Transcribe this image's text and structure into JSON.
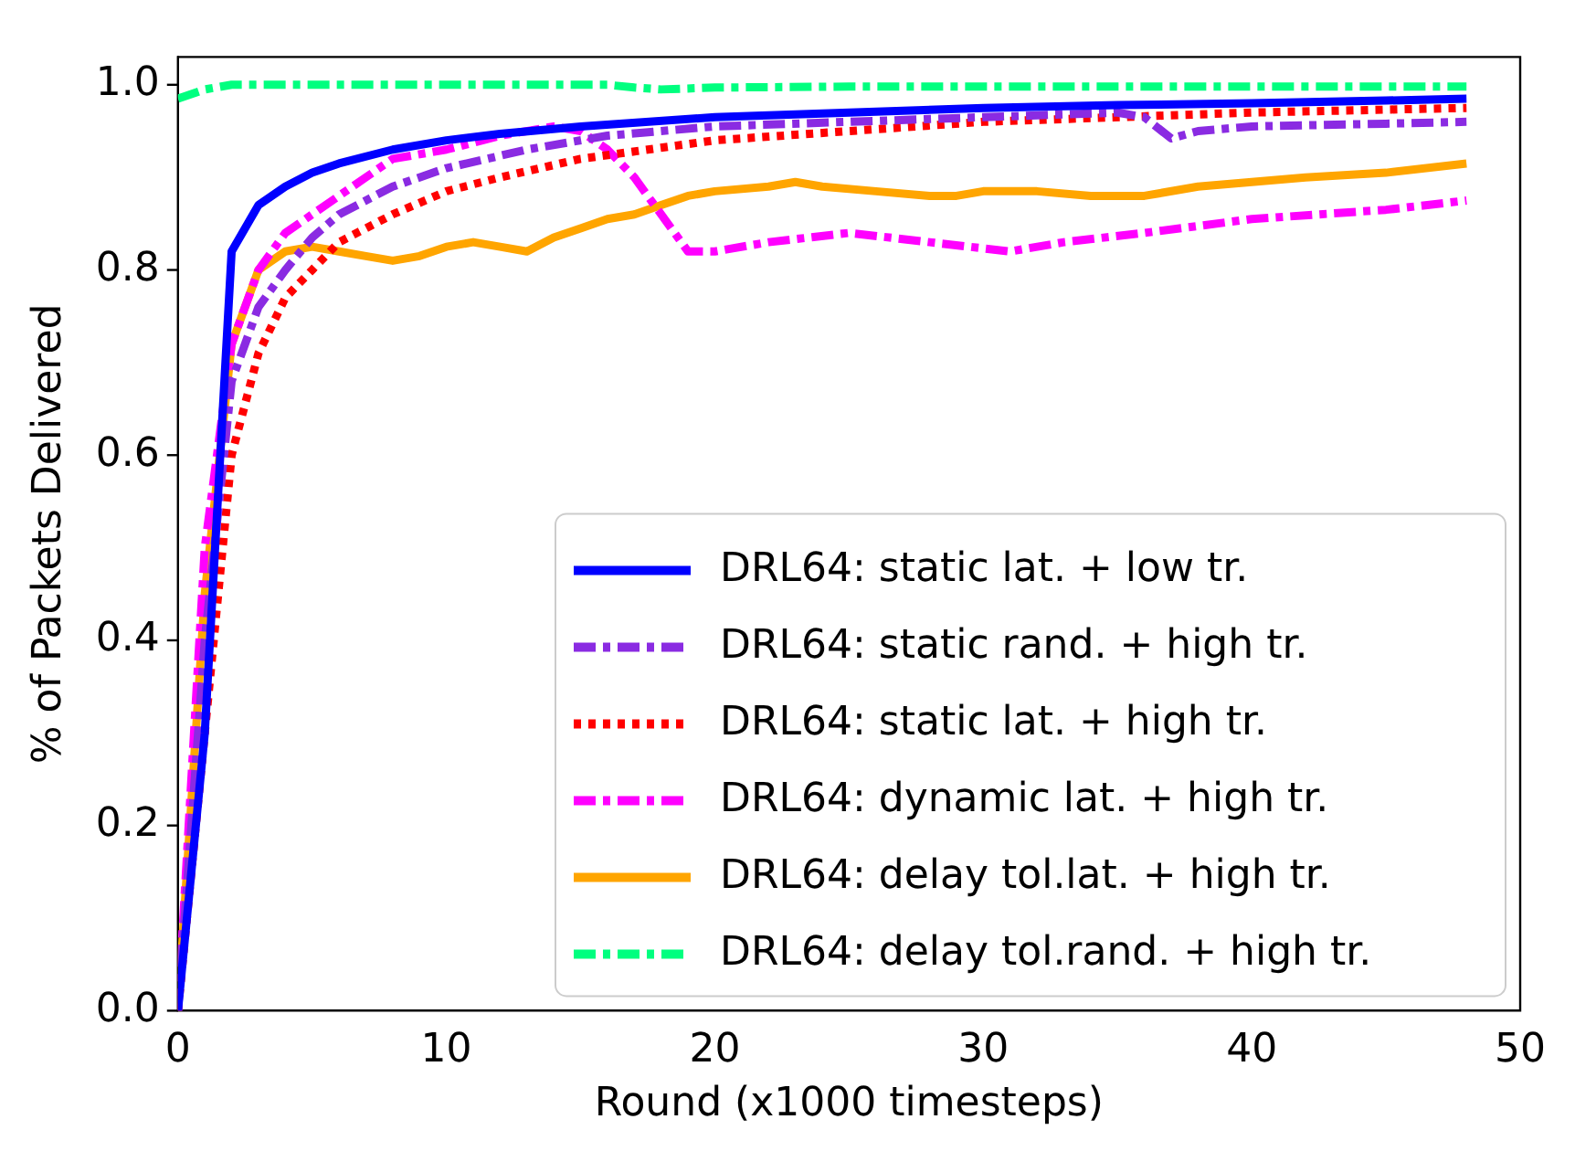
{
  "chart_data": {
    "type": "line",
    "xlabel": "Round (x1000 timesteps)",
    "ylabel": "% of Packets Delivered",
    "xlim": [
      0,
      50
    ],
    "ylim": [
      0,
      1.03
    ],
    "xticks": [
      0,
      10,
      20,
      30,
      40,
      50
    ],
    "yticks": [
      {
        "value": 0,
        "label": "0.0"
      },
      {
        "value": 0.2,
        "label": "0.2"
      },
      {
        "value": 0.4,
        "label": "0.4"
      },
      {
        "value": 0.6,
        "label": "0.6"
      },
      {
        "value": 0.8,
        "label": "0.8"
      },
      {
        "value": 1,
        "label": "1.0"
      }
    ],
    "grid": false,
    "legend": "bottom right",
    "marker": "none",
    "series": [
      {
        "name": "DRL64: static lat. + low tr.",
        "color": "#0000ff",
        "line_style": "solid",
        "x": [
          0,
          1,
          2,
          3,
          4,
          5,
          6,
          8,
          10,
          12,
          15,
          20,
          25,
          30,
          35,
          40,
          45,
          48
        ],
        "values": [
          0,
          0.3,
          0.82,
          0.87,
          0.89,
          0.905,
          0.915,
          0.93,
          0.94,
          0.947,
          0.955,
          0.965,
          0.97,
          0.975,
          0.978,
          0.98,
          0.983,
          0.985
        ]
      },
      {
        "name": "DRL64: static rand. + high tr.",
        "color": "#8a2be2",
        "line_style": "dashdot",
        "x": [
          0,
          1,
          2,
          3,
          4,
          5,
          6,
          8,
          10,
          13,
          16,
          20,
          25,
          30,
          35,
          36,
          37,
          38,
          40,
          45,
          48
        ],
        "values": [
          0,
          0.4,
          0.68,
          0.76,
          0.8,
          0.835,
          0.86,
          0.89,
          0.91,
          0.93,
          0.945,
          0.955,
          0.96,
          0.965,
          0.97,
          0.965,
          0.942,
          0.95,
          0.955,
          0.958,
          0.96
        ]
      },
      {
        "name": "DRL64: static lat. + high tr.",
        "color": "#ff0000",
        "line_style": "dotted",
        "x": [
          0,
          1,
          2,
          3,
          4,
          5,
          6,
          8,
          10,
          12,
          15,
          20,
          25,
          30,
          40,
          48
        ],
        "values": [
          0,
          0.3,
          0.6,
          0.71,
          0.77,
          0.8,
          0.83,
          0.86,
          0.885,
          0.9,
          0.92,
          0.94,
          0.95,
          0.96,
          0.97,
          0.975
        ]
      },
      {
        "name": "DRL64: dynamic lat. + high tr.",
        "color": "#ff00ff",
        "line_style": "dashdot",
        "x": [
          0,
          1,
          2,
          3,
          4,
          5,
          6,
          7,
          8,
          10,
          12,
          14,
          15,
          16,
          17,
          18,
          19,
          20,
          22,
          25,
          28,
          31,
          33,
          36,
          40,
          45,
          48
        ],
        "values": [
          0,
          0.5,
          0.72,
          0.8,
          0.84,
          0.86,
          0.88,
          0.9,
          0.92,
          0.93,
          0.945,
          0.955,
          0.95,
          0.93,
          0.9,
          0.86,
          0.82,
          0.82,
          0.83,
          0.84,
          0.83,
          0.82,
          0.83,
          0.84,
          0.855,
          0.865,
          0.875
        ]
      },
      {
        "name": "DRL64: delay tol.lat. + high tr.",
        "color": "#ffa500",
        "line_style": "solid",
        "x": [
          0,
          1,
          2,
          3,
          4,
          5,
          6,
          7,
          8,
          9,
          10,
          11,
          12,
          13,
          14,
          15,
          16,
          17,
          18,
          19,
          20,
          22,
          23,
          24,
          26,
          28,
          29,
          30,
          32,
          34,
          36,
          38,
          40,
          42,
          45,
          48
        ],
        "values": [
          0,
          0.45,
          0.72,
          0.8,
          0.82,
          0.825,
          0.82,
          0.815,
          0.81,
          0.815,
          0.825,
          0.83,
          0.825,
          0.82,
          0.835,
          0.845,
          0.855,
          0.86,
          0.87,
          0.88,
          0.885,
          0.89,
          0.895,
          0.89,
          0.885,
          0.88,
          0.88,
          0.885,
          0.885,
          0.88,
          0.88,
          0.89,
          0.895,
          0.9,
          0.905,
          0.915
        ]
      },
      {
        "name": "DRL64: delay tol.rand. + high tr.",
        "color": "#00ff7f",
        "line_style": "dashdot",
        "x": [
          0,
          1,
          2,
          5,
          10,
          16,
          17,
          18,
          20,
          25,
          30,
          40,
          48
        ],
        "values": [
          0.985,
          0.995,
          1,
          1,
          1,
          1,
          0.997,
          0.995,
          0.997,
          0.998,
          0.998,
          0.998,
          0.998
        ]
      }
    ]
  }
}
